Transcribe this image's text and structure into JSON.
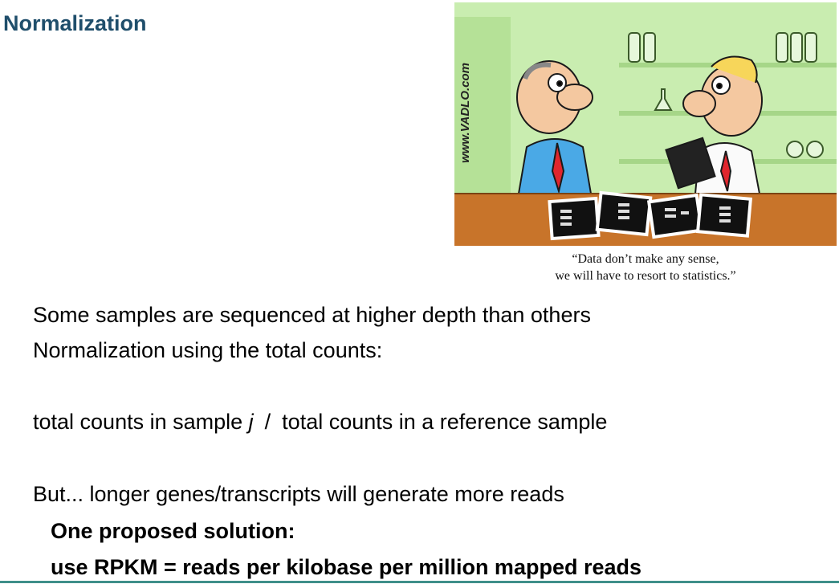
{
  "slide": {
    "title": "Normalization",
    "cartoon": {
      "watermark": "www.VADLO.com",
      "caption_line1": "“Data don’t make any sense,",
      "caption_line2": "we will have to resort to statistics.”",
      "colors": {
        "wall": "#c9edb0",
        "counter": "#c8742a"
      }
    },
    "body": {
      "line1": "Some samples are sequenced at higher depth than others",
      "line2": "Normalization using the total counts:",
      "line3_a": "total counts in sample ",
      "line3_var": "j",
      "line3_sep": "/",
      "line3_b": "total counts in a reference sample",
      "line4": "But... longer genes/transcripts will generate more reads",
      "line5": "One proposed solution:",
      "line6": "use RPKM = reads per kilobase per million mapped reads"
    }
  }
}
